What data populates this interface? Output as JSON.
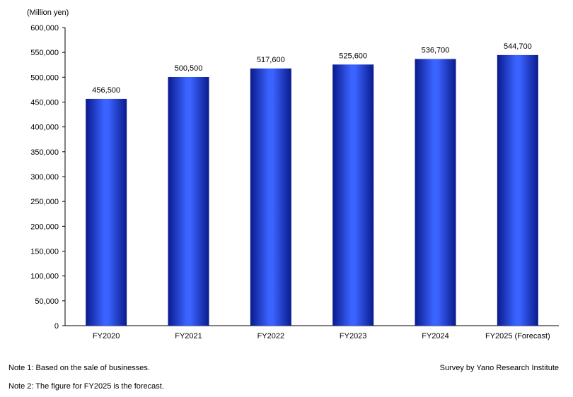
{
  "chart_data": {
    "type": "bar",
    "unit_label": "(Million yen)",
    "categories": [
      "FY2020",
      "FY2021",
      "FY2022",
      "FY2023",
      "FY2024",
      "FY2025 (Forecast)"
    ],
    "values": [
      456500,
      500500,
      517600,
      525600,
      536700,
      544700
    ],
    "value_labels": [
      "456,500",
      "500,500",
      "517,600",
      "525,600",
      "536,700",
      "544,700"
    ],
    "ylim": [
      0,
      600000
    ],
    "yticks": [
      0,
      50000,
      100000,
      150000,
      200000,
      250000,
      300000,
      350000,
      400000,
      450000,
      500000,
      550000,
      600000
    ],
    "ytick_labels": [
      "0",
      "50,000",
      "100,000",
      "150,000",
      "200,000",
      "250,000",
      "300,000",
      "350,000",
      "400,000",
      "450,000",
      "500,000",
      "550,000",
      "600,000"
    ],
    "grid": false,
    "bar_color": "#2a4de0"
  },
  "notes": {
    "note1": "Note 1: Based on the sale of businesses.",
    "note2": "Note 2: The figure for FY2025 is the forecast.",
    "source": "Survey by Yano Research Institute"
  }
}
